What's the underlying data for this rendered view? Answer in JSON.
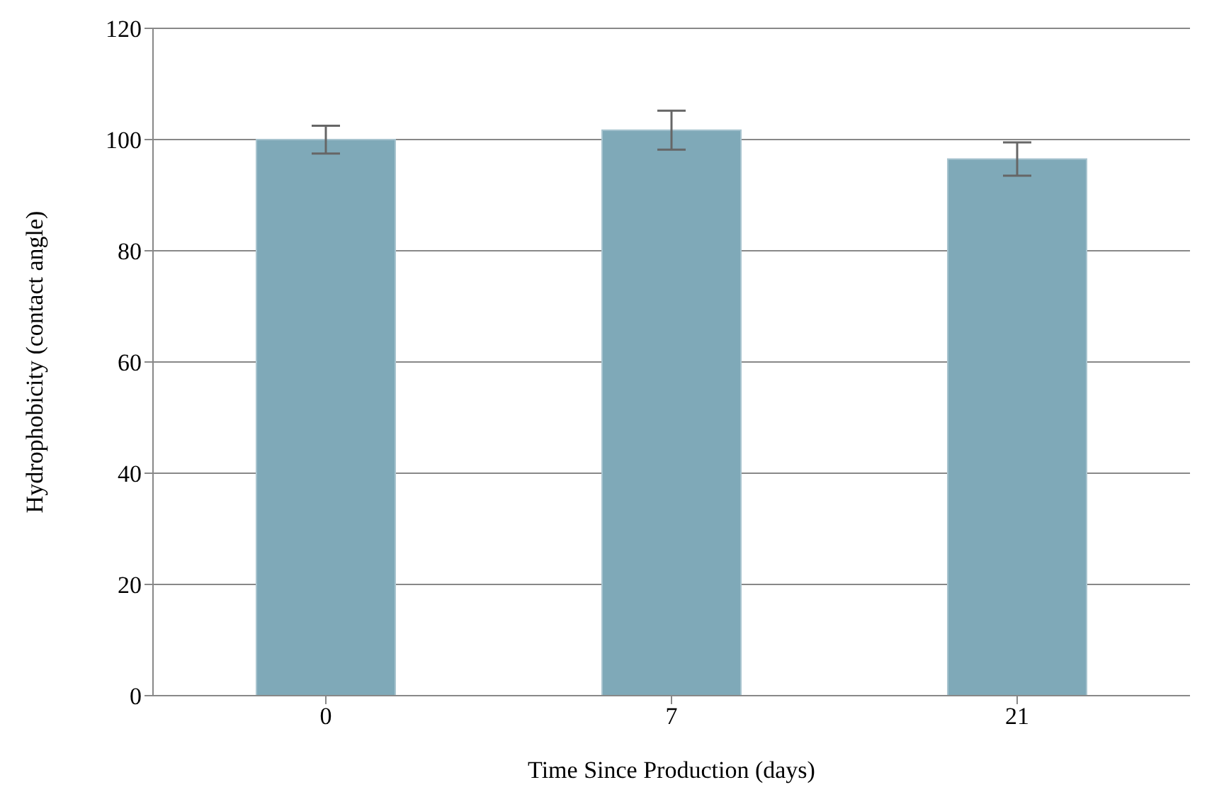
{
  "chart_data": {
    "type": "bar",
    "xlabel": "Time Since Production (days)",
    "ylabel": "Hydrophobicity (contact angle)",
    "categories": [
      "0",
      "7",
      "21"
    ],
    "values": [
      100,
      101.7,
      96.5
    ],
    "errors": [
      2.5,
      3.5,
      3
    ],
    "color": "#7fa9b8",
    "ylim": [
      0,
      120
    ],
    "yticks": [
      0,
      20,
      40,
      60,
      80,
      100,
      120
    ],
    "grid": "y",
    "legend": false
  }
}
